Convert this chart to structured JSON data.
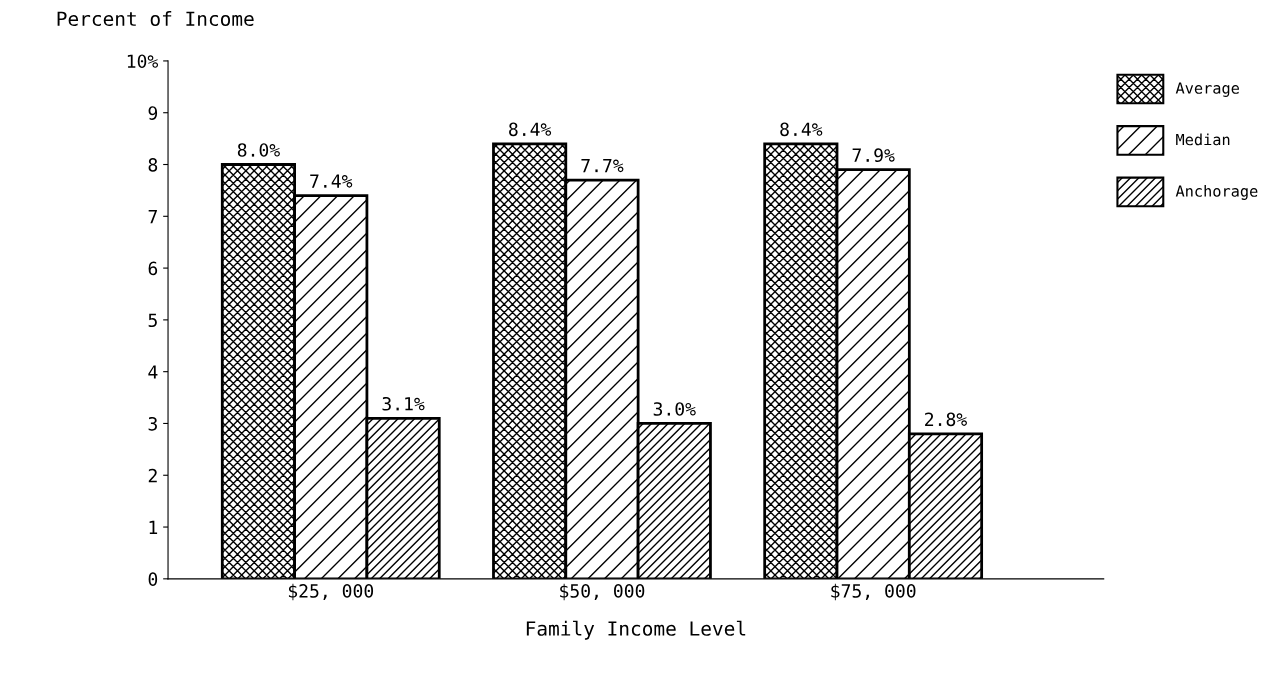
{
  "chart_data": {
    "type": "bar",
    "ylabel": "Percent of Income",
    "xlabel": "Family Income Level",
    "categories": [
      "$25, 000",
      "$50, 000",
      "$75, 000"
    ],
    "series": [
      {
        "name": "Average",
        "color": "#000000",
        "values": [
          8.0,
          8.4,
          8.4
        ],
        "value_labels": [
          "8.0%",
          "8.4%",
          "8.4%"
        ]
      },
      {
        "name": "Median",
        "color": "#000000",
        "values": [
          7.4,
          7.7,
          7.9
        ],
        "value_labels": [
          "7.4%",
          "7.7%",
          "7.9%"
        ]
      },
      {
        "name": "Anchorage",
        "color": "#000000",
        "values": [
          3.1,
          3.0,
          2.8
        ],
        "value_labels": [
          "3.1%",
          "3.0%",
          "2.8%"
        ]
      }
    ],
    "ylim": [
      0,
      10
    ],
    "yticks": [
      0,
      1,
      2,
      3,
      4,
      5,
      6,
      7,
      8,
      9,
      {
        "value": 10,
        "label": "10%"
      }
    ],
    "grid": false,
    "legend": "top right"
  }
}
